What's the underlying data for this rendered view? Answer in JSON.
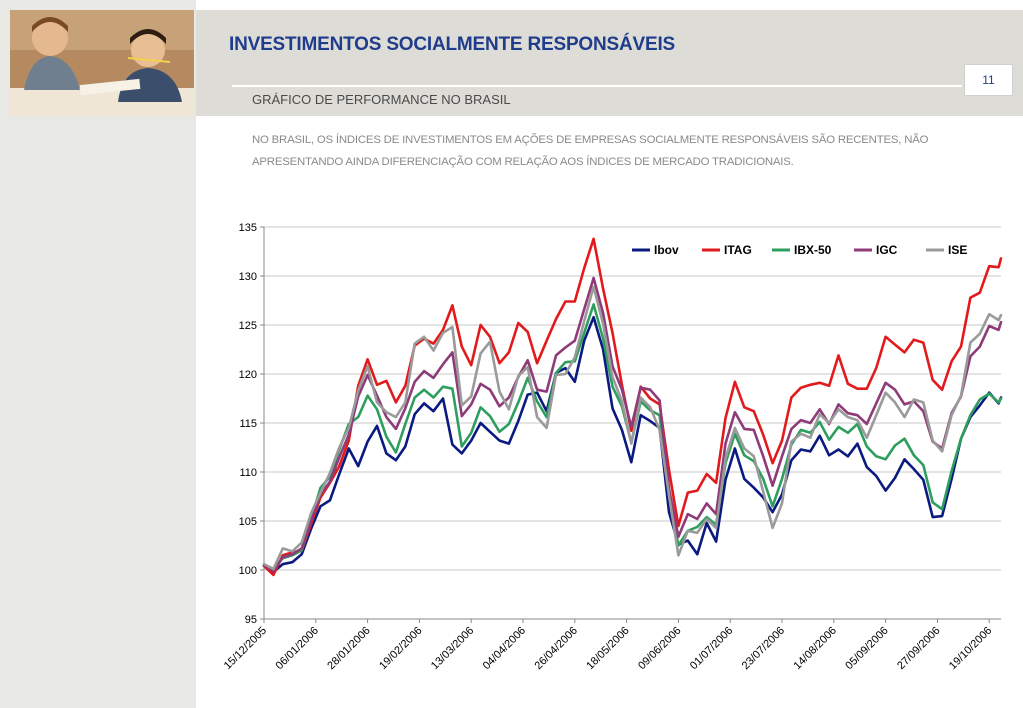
{
  "header": {
    "title": "INVESTIMENTOS SOCIALMENTE RESPONSÁVEIS",
    "subtitle": "GRÁFICO DE PERFORMANCE NO BRASIL",
    "page_number": "11"
  },
  "description": "NO BRASIL, OS ÍNDICES DE INVESTIMENTOS EM AÇÕES DE EMPRESAS SOCIALMENTE RESPONSÁVEIS SÃO RECENTES, NÃO APRESENTANDO AINDA DIFERENCIAÇÃO COM RELAÇÃO AOS ÍNDICES DE MERCADO TRADICIONAIS.",
  "chart_data": {
    "type": "line",
    "title": "",
    "xlabel": "",
    "ylabel": "",
    "ylim": [
      95,
      135
    ],
    "yticks": [
      95,
      100,
      105,
      110,
      115,
      120,
      125,
      130,
      135
    ],
    "x_tick_labels": [
      "15/12/2005",
      "06/01/2006",
      "28/01/2006",
      "19/02/2006",
      "13/03/2006",
      "04/04/2006",
      "26/04/2006",
      "18/05/2006",
      "09/06/2006",
      "01/07/2006",
      "23/07/2006",
      "14/08/2006",
      "05/09/2006",
      "27/09/2006",
      "19/10/2006"
    ],
    "x_step_days": 22,
    "x_last_day": 313,
    "x_sample_step_days": 4,
    "grid": "horizontal",
    "legend_position": "top-right",
    "series": [
      {
        "name": "Ibov",
        "color": "#0a1a80",
        "values": [
          100.5,
          99.8,
          100.6,
          100.8,
          101.6,
          104.2,
          106.5,
          107.1,
          109.8,
          112.4,
          110.6,
          113.1,
          114.7,
          111.9,
          111.2,
          112.6,
          115.9,
          117.0,
          116.2,
          117.5,
          112.8,
          111.9,
          113.2,
          115.0,
          114.1,
          113.2,
          112.9,
          115.2,
          117.9,
          118.1,
          116.2,
          120.1,
          120.6,
          119.2,
          123.4,
          125.8,
          122.5,
          116.5,
          114.3,
          111.0,
          115.8,
          115.2,
          114.5,
          105.9,
          102.6,
          103.0,
          101.6,
          104.8,
          102.9,
          109.2,
          112.4,
          109.3,
          108.4,
          107.4,
          105.9,
          107.7,
          111.2,
          112.3,
          112.1,
          113.7,
          111.7,
          112.3,
          111.6,
          112.9,
          110.5,
          109.6,
          108.1,
          109.4,
          111.3,
          110.3,
          109.2,
          105.4,
          105.5,
          109.3,
          113.4,
          115.6,
          116.8,
          118.1,
          117.0,
          117.6
        ]
      },
      {
        "name": "ITAG",
        "color": "#e31a1c",
        "values": [
          100.4,
          99.5,
          101.5,
          101.8,
          102.0,
          104.7,
          107.4,
          108.9,
          110.6,
          113.2,
          118.8,
          121.5,
          118.9,
          119.3,
          117.1,
          118.8,
          122.9,
          123.6,
          123.1,
          124.5,
          127.0,
          122.8,
          120.9,
          125.0,
          123.8,
          121.1,
          122.2,
          125.2,
          124.3,
          121.1,
          123.4,
          125.6,
          127.4,
          127.4,
          130.8,
          133.8,
          128.7,
          124.2,
          118.9,
          114.2,
          118.7,
          117.5,
          116.9,
          110.2,
          104.5,
          107.9,
          108.1,
          109.8,
          108.9,
          115.5,
          119.2,
          116.6,
          116.2,
          113.8,
          110.9,
          113.2,
          117.6,
          118.6,
          118.9,
          119.1,
          118.8,
          121.9,
          119.0,
          118.5,
          118.5,
          120.6,
          123.8,
          123.0,
          122.2,
          123.5,
          123.2,
          119.4,
          118.4,
          121.3,
          122.8,
          127.8,
          128.3,
          131.0,
          130.9,
          131.8
        ]
      },
      {
        "name": "IBX-50",
        "color": "#2e9e5e",
        "values": [
          100.5,
          100.1,
          101.2,
          101.5,
          102.0,
          105.2,
          108.4,
          109.5,
          112.3,
          114.9,
          115.6,
          117.8,
          116.4,
          113.6,
          112.0,
          114.9,
          117.6,
          118.4,
          117.6,
          118.7,
          118.5,
          112.6,
          114.0,
          116.6,
          115.7,
          114.1,
          114.9,
          117.1,
          119.6,
          117.2,
          115.6,
          120.1,
          121.2,
          121.3,
          124.2,
          127.1,
          123.6,
          118.7,
          116.7,
          113.0,
          117.2,
          116.3,
          115.8,
          107.6,
          102.5,
          104.0,
          104.4,
          105.4,
          104.6,
          110.9,
          113.9,
          111.7,
          111.1,
          109.3,
          106.5,
          109.3,
          112.8,
          114.3,
          114.0,
          115.1,
          113.3,
          114.6,
          114.0,
          114.9,
          112.6,
          111.6,
          111.3,
          112.7,
          113.4,
          111.7,
          110.7,
          106.9,
          106.2,
          110.1,
          113.4,
          115.8,
          117.4,
          118.0,
          117.1,
          117.5
        ]
      },
      {
        "name": "IGC",
        "color": "#8e3b7a",
        "values": [
          100.5,
          99.9,
          101.3,
          101.6,
          102.2,
          105.0,
          107.7,
          109.0,
          111.5,
          113.8,
          117.7,
          119.9,
          117.8,
          115.6,
          114.4,
          116.5,
          119.2,
          120.3,
          119.6,
          121.0,
          122.2,
          115.7,
          116.9,
          119.0,
          118.4,
          116.7,
          117.6,
          119.7,
          121.4,
          118.4,
          118.2,
          121.9,
          122.7,
          123.4,
          126.6,
          129.8,
          126.2,
          120.8,
          118.4,
          114.6,
          118.6,
          118.4,
          117.3,
          108.3,
          103.4,
          105.7,
          105.2,
          106.8,
          105.7,
          112.9,
          116.1,
          114.4,
          114.3,
          111.6,
          108.6,
          111.6,
          114.4,
          115.3,
          115.0,
          116.4,
          114.9,
          116.9,
          116.0,
          115.8,
          114.9,
          117.0,
          119.1,
          118.4,
          116.9,
          117.2,
          116.2,
          113.1,
          112.4,
          116.0,
          117.7,
          121.8,
          122.8,
          124.9,
          124.5,
          125.3
        ]
      },
      {
        "name": "ISE",
        "color": "#9a9a9a",
        "values": [
          100.6,
          100.1,
          102.2,
          101.9,
          102.8,
          105.8,
          107.9,
          109.9,
          112.5,
          114.5,
          118.3,
          120.8,
          117.1,
          116.1,
          115.6,
          117.1,
          123.1,
          123.8,
          122.4,
          124.2,
          124.8,
          116.8,
          117.7,
          122.1,
          123.3,
          118.2,
          116.4,
          119.8,
          120.7,
          115.6,
          114.5,
          119.9,
          120.0,
          121.7,
          125.4,
          128.9,
          125.1,
          119.7,
          117.2,
          112.9,
          117.6,
          116.6,
          114.3,
          107.6,
          101.5,
          104.0,
          103.8,
          105.2,
          104.3,
          111.4,
          114.5,
          112.4,
          111.6,
          108.0,
          104.3,
          106.8,
          113.1,
          113.9,
          113.5,
          115.9,
          115.0,
          116.4,
          115.6,
          115.3,
          113.5,
          115.8,
          118.1,
          117.1,
          115.6,
          117.4,
          117.1,
          113.2,
          112.1,
          115.8,
          117.8,
          123.2,
          124.1,
          126.1,
          125.5,
          126.0
        ]
      }
    ]
  }
}
